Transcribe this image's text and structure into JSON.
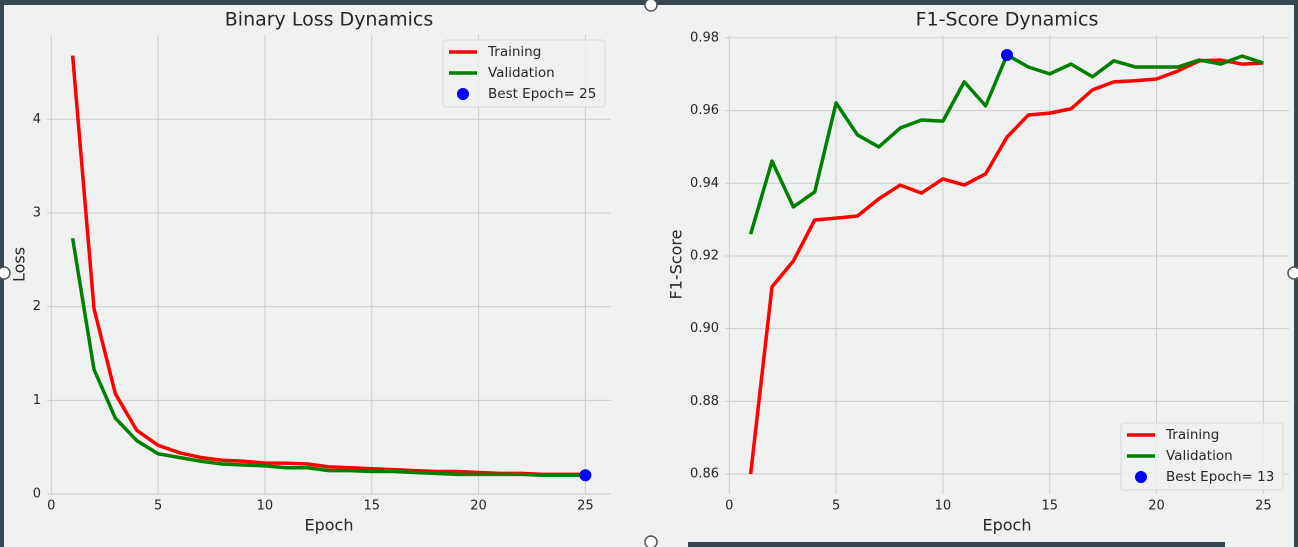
{
  "chart_data": [
    {
      "type": "line",
      "title": "Binary Loss Dynamics",
      "xlabel": "Epoch",
      "ylabel": "Loss",
      "x": [
        1,
        2,
        3,
        4,
        5,
        6,
        7,
        8,
        9,
        10,
        11,
        12,
        13,
        14,
        15,
        16,
        17,
        18,
        19,
        20,
        21,
        22,
        23,
        24,
        25
      ],
      "series": [
        {
          "name": "Training",
          "color": "#ff0000",
          "values": [
            4.68,
            1.98,
            1.07,
            0.68,
            0.52,
            0.44,
            0.39,
            0.36,
            0.35,
            0.33,
            0.33,
            0.32,
            0.29,
            0.28,
            0.27,
            0.26,
            0.25,
            0.24,
            0.24,
            0.23,
            0.22,
            0.22,
            0.21,
            0.21,
            0.21
          ]
        },
        {
          "name": "Validation",
          "color": "#008000",
          "values": [
            2.73,
            1.33,
            0.81,
            0.57,
            0.43,
            0.39,
            0.35,
            0.32,
            0.31,
            0.3,
            0.28,
            0.28,
            0.25,
            0.25,
            0.24,
            0.24,
            0.23,
            0.22,
            0.21,
            0.21,
            0.21,
            0.21,
            0.2,
            0.2,
            0.2
          ]
        },
        {
          "name": "Best Epoch= 25",
          "color": "#0000ff",
          "kind": "scatter",
          "x": [
            25
          ],
          "values": [
            0.2
          ]
        }
      ],
      "xlim": [
        -0.2,
        26.2
      ],
      "xticks": [
        0,
        5,
        10,
        15,
        20,
        25
      ],
      "ylim": [
        0,
        4.9
      ],
      "yticks": [
        0,
        1,
        2,
        3,
        4
      ],
      "grid": true,
      "legend": "upper right"
    },
    {
      "type": "line",
      "title": "F1-Score Dynamics",
      "xlabel": "Epoch",
      "ylabel": "F1-Score",
      "x": [
        1,
        2,
        3,
        4,
        5,
        6,
        7,
        8,
        9,
        10,
        11,
        12,
        13,
        14,
        15,
        16,
        17,
        18,
        19,
        20,
        21,
        22,
        23,
        24,
        25
      ],
      "series": [
        {
          "name": "Training",
          "color": "#ff0000",
          "values": [
            0.86,
            0.9115,
            0.9186,
            0.9299,
            0.9304,
            0.931,
            0.9357,
            0.9395,
            0.9373,
            0.9412,
            0.9395,
            0.9426,
            0.9527,
            0.9588,
            0.9593,
            0.9605,
            0.9657,
            0.9679,
            0.9682,
            0.9687,
            0.9709,
            0.9737,
            0.9739,
            0.9728,
            0.9731
          ]
        },
        {
          "name": "Validation",
          "color": "#008000",
          "values": [
            0.926,
            0.9461,
            0.9335,
            0.9376,
            0.9621,
            0.9533,
            0.95,
            0.9552,
            0.9574,
            0.9571,
            0.9679,
            0.9613,
            0.9753,
            0.972,
            0.9701,
            0.9728,
            0.9693,
            0.9737,
            0.972,
            0.972,
            0.972,
            0.9739,
            0.9728,
            0.975,
            0.9731
          ]
        },
        {
          "name": "Best Epoch= 13",
          "color": "#0000ff",
          "kind": "scatter",
          "x": [
            13
          ],
          "values": [
            0.9753
          ]
        }
      ],
      "xlim": [
        -0.2,
        26.2
      ],
      "xticks": [
        0,
        5,
        10,
        15,
        20,
        25
      ],
      "ylim": [
        0.8545,
        0.9808
      ],
      "yticks": [
        0.86,
        0.88,
        {
          "value": 0.9,
          "label": "0.90"
        },
        0.92,
        0.94,
        0.96,
        0.98
      ],
      "grid": true,
      "legend": "lower right"
    }
  ]
}
